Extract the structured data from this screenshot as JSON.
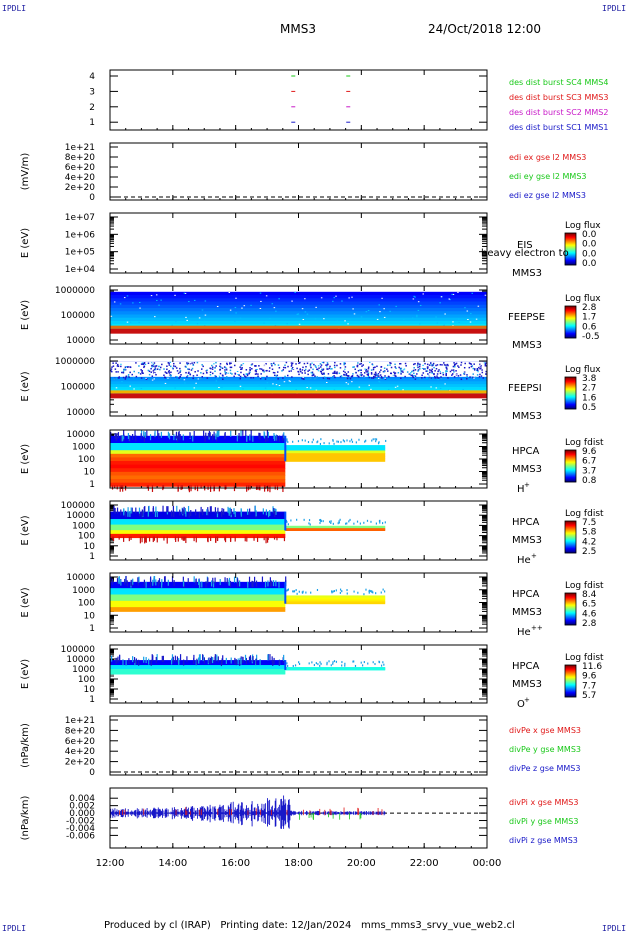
{
  "corners": {
    "tl": "IPDLI",
    "tr": "IPDLI",
    "bl": "IPDLI",
    "br": "IPDLI"
  },
  "header": {
    "mission": "MMS3",
    "datetime": "24/Oct/2018 12:00"
  },
  "footer": {
    "produced_by": "Produced by cl (IRAP)",
    "printing": "Printing date: 12/Jan/2024",
    "file": "mms_mms3_srvy_vue_web2.cl"
  },
  "colors": {
    "blue": "#1818c8",
    "red": "#e01818",
    "green": "#18c818",
    "magenta": "#c818c8",
    "dark_blue": "#00008b"
  },
  "chart_data": [
    {
      "type": "scatter",
      "panel": "avail",
      "yticks": [
        "1",
        "2",
        "3",
        "4"
      ],
      "ylim": [
        0.5,
        4.5
      ],
      "series": [
        {
          "name": "des dist burst SC1 MMS1",
          "color": "#1818c8",
          "y": 1,
          "x": [
            "17:50",
            "19:35"
          ]
        },
        {
          "name": "des dist burst SC2 MMS2",
          "color": "#c818c8",
          "y": 2,
          "x": [
            "17:50",
            "19:35"
          ]
        },
        {
          "name": "des dist burst SC3 MMS3",
          "color": "#e01818",
          "y": 3,
          "x": [
            "17:50",
            "19:35"
          ]
        },
        {
          "name": "des dist burst SC4 MMS4",
          "color": "#18c818",
          "y": 4,
          "x": [
            "17:50",
            "19:35"
          ]
        }
      ]
    },
    {
      "type": "line",
      "panel": "edi",
      "ylabel": "(mV/m)",
      "yticks": [
        "0",
        "2e+20",
        "4e+20",
        "6e+20",
        "8e+20",
        "1e+21"
      ],
      "ylim": [
        0,
        1e+21
      ],
      "legend": [
        {
          "name": "edi ex gse l2 MMS3",
          "color": "#e01818"
        },
        {
          "name": "edi ey gse l2 MMS3",
          "color": "#18c818"
        },
        {
          "name": "edi ez gse l2 MMS3",
          "color": "#1818c8"
        }
      ]
    },
    {
      "type": "heatmap",
      "panel": "eis",
      "ylabel": "E (eV)",
      "yticks": [
        "1e+04",
        "1e+05",
        "1e+06",
        "1e+07"
      ],
      "instrument": "EIS",
      "extra": "heavy electron to",
      "sc": "MMS3",
      "cbar_title": "Log flux",
      "cbar_ticks": [
        "0.0",
        "0.0",
        "0.0",
        "0.0"
      ]
    },
    {
      "type": "heatmap",
      "panel": "feepse",
      "ylabel": "E (eV)",
      "yticks": [
        "10000",
        "100000",
        "1000000"
      ],
      "instrument": "FEEPSE",
      "sc": "MMS3",
      "cbar_title": "Log flux",
      "cbar_ticks": [
        "2.8",
        "1.7",
        "0.6",
        "-0.5"
      ]
    },
    {
      "type": "heatmap",
      "panel": "feepsi",
      "ylabel": "E (eV)",
      "yticks": [
        "10000",
        "100000",
        "1000000"
      ],
      "instrument": "FEEPSI",
      "sc": "MMS3",
      "cbar_title": "Log flux",
      "cbar_ticks": [
        "3.8",
        "2.7",
        "1.6",
        "0.5"
      ]
    },
    {
      "type": "heatmap",
      "panel": "hpca_h",
      "ylabel": "E (eV)",
      "yticks": [
        "1",
        "10",
        "100",
        "1000",
        "10000"
      ],
      "instrument": "HPCA",
      "sc": "MMS3",
      "species": "H",
      "charge": "+",
      "cbar_title": "Log fdist",
      "cbar_ticks": [
        "9.6",
        "6.7",
        "3.7",
        "0.8"
      ]
    },
    {
      "type": "heatmap",
      "panel": "hpca_he",
      "ylabel": "E (eV)",
      "yticks": [
        "1",
        "10",
        "100",
        "1000",
        "10000",
        "100000"
      ],
      "instrument": "HPCA",
      "sc": "MMS3",
      "species": "He",
      "charge": "+",
      "cbar_title": "Log fdist",
      "cbar_ticks": [
        "7.5",
        "5.8",
        "4.2",
        "2.5"
      ]
    },
    {
      "type": "heatmap",
      "panel": "hpca_hepp",
      "ylabel": "E (eV)",
      "yticks": [
        "1",
        "10",
        "100",
        "1000",
        "10000"
      ],
      "instrument": "HPCA",
      "sc": "MMS3",
      "species": "He",
      "charge": "++",
      "cbar_title": "Log fdist",
      "cbar_ticks": [
        "8.4",
        "6.5",
        "4.6",
        "2.8"
      ]
    },
    {
      "type": "heatmap",
      "panel": "hpca_o",
      "ylabel": "E (eV)",
      "yticks": [
        "1",
        "10",
        "100",
        "1000",
        "10000",
        "100000"
      ],
      "instrument": "HPCA",
      "sc": "MMS3",
      "species": "O",
      "charge": "+",
      "cbar_title": "Log fdist",
      "cbar_ticks": [
        "11.6",
        "9.6",
        "7.7",
        "5.7"
      ]
    },
    {
      "type": "line",
      "panel": "divpe",
      "ylabel": "(nPa/km)",
      "yticks": [
        "0",
        "2e+20",
        "4e+20",
        "6e+20",
        "8e+20",
        "1e+21"
      ],
      "ylim": [
        0,
        1e+21
      ],
      "legend": [
        {
          "name": "divPe x gse MMS3",
          "color": "#e01818"
        },
        {
          "name": "divPe y gse MMS3",
          "color": "#18c818"
        },
        {
          "name": "divPe z gse MMS3",
          "color": "#1818c8"
        }
      ]
    },
    {
      "type": "line",
      "panel": "divpi",
      "ylabel": "(nPa/km)",
      "yticks": [
        "-0.006",
        "-0.004",
        "-0.002",
        "0.000",
        "0.002",
        "0.004"
      ],
      "ylim": [
        -0.007,
        0.005
      ],
      "legend": [
        {
          "name": "divPi x gse MMS3",
          "color": "#e01818"
        },
        {
          "name": "divPi y gse MMS3",
          "color": "#18c818"
        },
        {
          "name": "divPi z gse MMS3",
          "color": "#1818c8"
        }
      ]
    }
  ],
  "xaxis": {
    "ticks": [
      "12:00",
      "14:00",
      "16:00",
      "18:00",
      "20:00",
      "22:00",
      "00:00"
    ],
    "xlim": [
      0,
      12
    ]
  }
}
